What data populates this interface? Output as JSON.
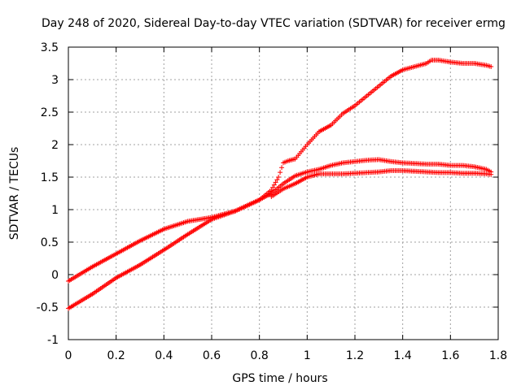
{
  "chart_data": {
    "type": "scatter",
    "title": "Day 248 of 2020, Sidereal Day-to-day VTEC variation (SDTVAR) for receiver ermg",
    "xlabel": "GPS time / hours",
    "ylabel": "SDTVAR / TECUs",
    "xlim": [
      0,
      1.8
    ],
    "ylim": [
      -1,
      3.5
    ],
    "x_ticks": [
      0,
      0.2,
      0.4,
      0.6,
      0.8,
      1,
      1.2,
      1.4,
      1.6,
      1.8
    ],
    "x_tick_labels": [
      "0",
      "0.2",
      "0.4",
      "0.6",
      "0.8",
      "1",
      "1.2",
      "1.4",
      "1.6",
      "1.8"
    ],
    "y_ticks": [
      -1,
      -0.5,
      0,
      0.5,
      1,
      1.5,
      2,
      2.5,
      3,
      3.5
    ],
    "y_tick_labels": [
      "-1",
      "-0.5",
      "0",
      "0.5",
      "1",
      "1.5",
      "2",
      "2.5",
      "3",
      "3.5"
    ],
    "grid": true,
    "marker": "+",
    "color": "#ff0000",
    "axis_color": "#000000",
    "grid_color": "#a0a0a0",
    "series": [
      {
        "name": "series-1",
        "x": [
          0.0,
          0.1,
          0.2,
          0.3,
          0.4,
          0.5,
          0.6,
          0.7,
          0.8,
          0.85,
          0.88,
          0.9,
          0.92,
          0.95,
          1.0,
          1.05,
          1.1,
          1.15,
          1.2,
          1.25,
          1.3,
          1.35,
          1.4,
          1.45,
          1.5,
          1.52,
          1.55,
          1.6,
          1.65,
          1.7,
          1.75,
          1.77
        ],
        "y": [
          -0.1,
          0.12,
          0.32,
          0.52,
          0.7,
          0.82,
          0.88,
          0.98,
          1.15,
          1.3,
          1.5,
          1.72,
          1.75,
          1.78,
          2.0,
          2.2,
          2.3,
          2.48,
          2.6,
          2.75,
          2.9,
          3.05,
          3.15,
          3.2,
          3.25,
          3.3,
          3.3,
          3.27,
          3.25,
          3.25,
          3.22,
          3.2
        ]
      },
      {
        "name": "series-2",
        "x": [
          0.0,
          0.1,
          0.2,
          0.3,
          0.4,
          0.5,
          0.6,
          0.7,
          0.8,
          0.85,
          0.9,
          0.95,
          1.0,
          1.05,
          1.1,
          1.15,
          1.2,
          1.25,
          1.3,
          1.35,
          1.4,
          1.45,
          1.5,
          1.55,
          1.6,
          1.65,
          1.7,
          1.75,
          1.77
        ],
        "y": [
          -0.52,
          -0.3,
          -0.05,
          0.15,
          0.38,
          0.62,
          0.85,
          0.98,
          1.15,
          1.25,
          1.4,
          1.52,
          1.58,
          1.62,
          1.68,
          1.72,
          1.74,
          1.76,
          1.77,
          1.74,
          1.72,
          1.71,
          1.7,
          1.7,
          1.68,
          1.68,
          1.66,
          1.62,
          1.58
        ]
      },
      {
        "name": "series-3",
        "x": [
          0.85,
          0.9,
          0.95,
          1.0,
          1.05,
          1.1,
          1.15,
          1.2,
          1.25,
          1.3,
          1.35,
          1.4,
          1.45,
          1.5,
          1.55,
          1.6,
          1.65,
          1.7,
          1.75,
          1.77
        ],
        "y": [
          1.2,
          1.32,
          1.4,
          1.5,
          1.55,
          1.55,
          1.55,
          1.56,
          1.57,
          1.58,
          1.6,
          1.6,
          1.59,
          1.58,
          1.57,
          1.57,
          1.56,
          1.56,
          1.55,
          1.54
        ]
      }
    ]
  }
}
